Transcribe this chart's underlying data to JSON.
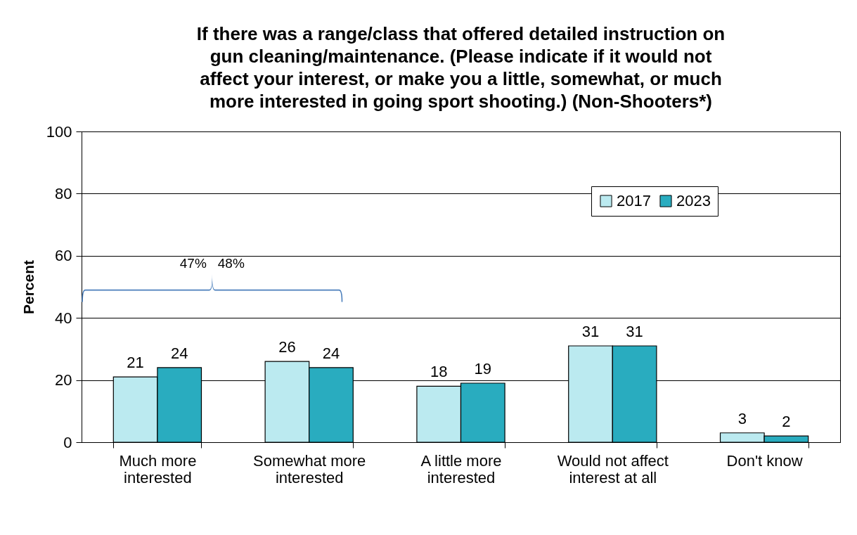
{
  "chart_data": {
    "type": "bar",
    "title": "If there was a range/class that offered detailed instruction on gun cleaning/maintenance. (Please indicate if it would not affect your interest, or make you a little, somewhat, or much more interested in going sport shooting.) (Non-Shooters*)",
    "ylabel": "Percent",
    "categories": [
      "Much more interested",
      "Somewhat more interested",
      "A little more interested",
      "Would not affect interest at all",
      "Don't know"
    ],
    "series": [
      {
        "name": "2017",
        "color": "#bbeaf0",
        "values": [
          21,
          26,
          18,
          31,
          3
        ]
      },
      {
        "name": "2023",
        "color": "#29acbf",
        "values": [
          24,
          24,
          19,
          31,
          2
        ]
      }
    ],
    "ylim": [
      0,
      100
    ],
    "yticks": [
      0,
      20,
      40,
      60,
      80,
      100
    ],
    "grid": "y",
    "legend": "top right",
    "data_labels": true,
    "annotations": [
      "47%",
      "48%"
    ]
  }
}
